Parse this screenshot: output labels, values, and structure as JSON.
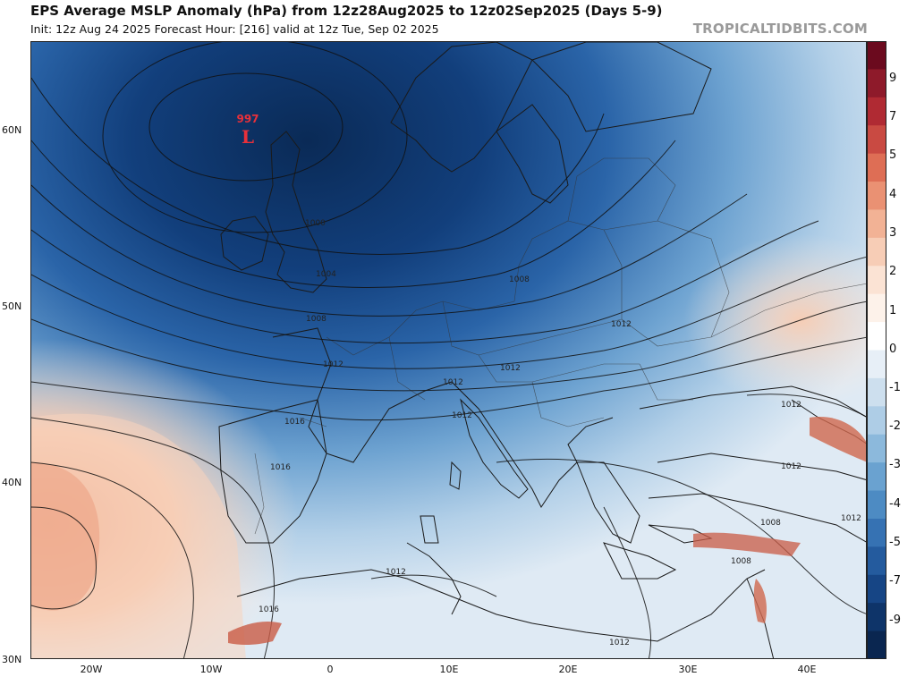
{
  "header": {
    "title": "EPS Average MSLP Anomaly (hPa) from 12z28Aug2025 to 12z02Sep2025 (Days 5-9)",
    "subtitle": "Init: 12z Aug 24 2025   Forecast Hour: [216]   valid at 12z Tue, Sep 02 2025",
    "site": "TROPICALTIDBITS.COM"
  },
  "low_center": {
    "value": "997",
    "symbol": "L"
  },
  "lat_labels": [
    "60N",
    "50N",
    "40N",
    "30N"
  ],
  "lon_labels": [
    "20W",
    "10W",
    "0",
    "10E",
    "20E",
    "30E",
    "40E"
  ],
  "contour_labels": [
    "1000",
    "1004",
    "1008",
    "1008",
    "1012",
    "1012",
    "1012",
    "1012",
    "1016",
    "1016",
    "1016",
    "1012",
    "1012",
    "1012",
    "1012",
    "1008",
    "1012",
    "1008",
    "1012"
  ],
  "colorbar": {
    "labels": [
      "9",
      "7",
      "5",
      "4",
      "3",
      "2",
      "1",
      "0",
      "-1",
      "-2",
      "-3",
      "-4",
      "-5",
      "-7",
      "-9"
    ],
    "colors": [
      "#6b0a1e",
      "#8e1a2a",
      "#b02a33",
      "#c94a42",
      "#de6e55",
      "#ea9173",
      "#f2b295",
      "#f7cdb6",
      "#fbe3d4",
      "#fdf2ea",
      "#ffffff",
      "#e7eff7",
      "#cddfee",
      "#aecde6",
      "#8cb9dc",
      "#6aa2d0",
      "#4d8bc3",
      "#3672b3",
      "#245b9e",
      "#164585",
      "#0e3469",
      "#0a2650"
    ]
  },
  "colors": {
    "deep_blue": "#0b2f5e",
    "mid_blue": "#3f7fc0",
    "light_blue": "#b8d4ea",
    "warm": "#f5c2a7"
  }
}
